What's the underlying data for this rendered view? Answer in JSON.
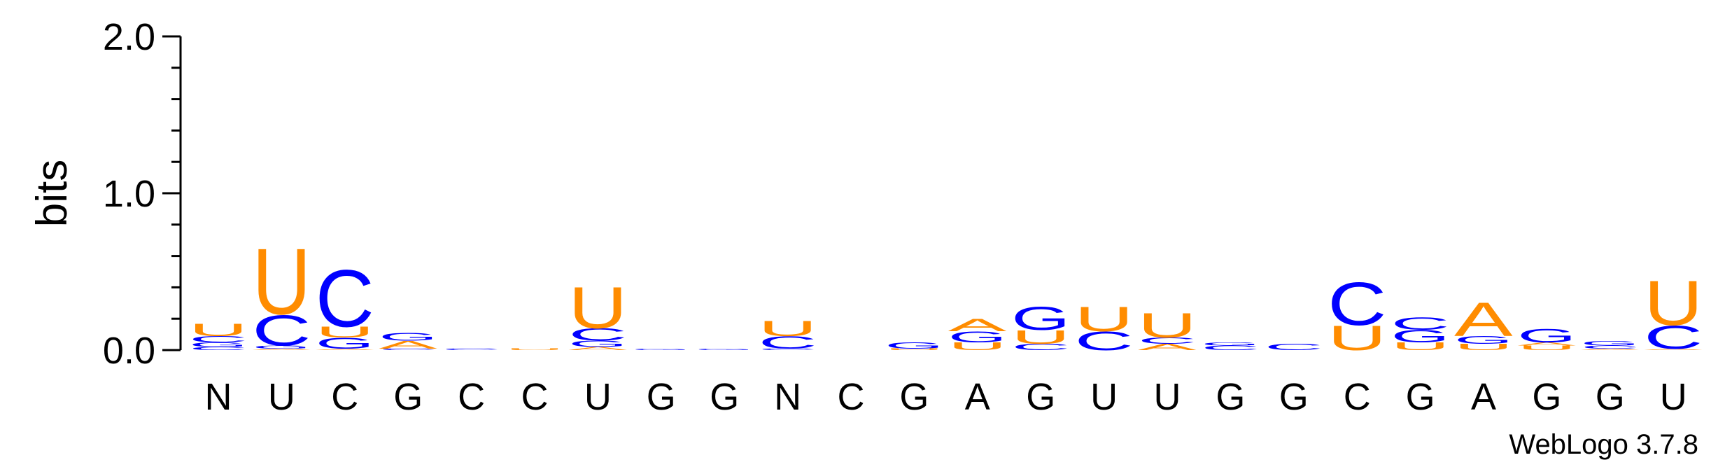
{
  "chart_data": {
    "type": "sequence-logo",
    "ylabel": "bits",
    "ylim": [
      0,
      2.0
    ],
    "yticks": [
      "0.0",
      "1.0",
      "2.0"
    ],
    "credit": "WebLogo 3.7.8",
    "colors": {
      "A": "#ff8c00",
      "U": "#ff8c00",
      "C": "#0000ff",
      "G": "#0000ff"
    },
    "positions": [
      {
        "label": "N",
        "stack": [
          {
            "letter": "C",
            "bits": 0.02
          },
          {
            "letter": "G",
            "bits": 0.03
          },
          {
            "letter": "C",
            "bits": 0.04
          },
          {
            "letter": "U",
            "bits": 0.08
          }
        ]
      },
      {
        "label": "U",
        "stack": [
          {
            "letter": "A",
            "bits": 0.01
          },
          {
            "letter": "G",
            "bits": 0.02
          },
          {
            "letter": "C",
            "bits": 0.2
          },
          {
            "letter": "U",
            "bits": 0.43
          }
        ]
      },
      {
        "label": "C",
        "stack": [
          {
            "letter": "A",
            "bits": 0.01
          },
          {
            "letter": "G",
            "bits": 0.07
          },
          {
            "letter": "U",
            "bits": 0.07
          },
          {
            "letter": "C",
            "bits": 0.37
          }
        ]
      },
      {
        "label": "G",
        "stack": [
          {
            "letter": "C",
            "bits": 0.01
          },
          {
            "letter": "A",
            "bits": 0.05
          },
          {
            "letter": "G",
            "bits": 0.05
          }
        ]
      },
      {
        "label": "C",
        "stack": [
          {
            "letter": "C",
            "bits": 0.01
          }
        ]
      },
      {
        "label": "C",
        "stack": [
          {
            "letter": "U",
            "bits": 0.01
          }
        ]
      },
      {
        "label": "U",
        "stack": [
          {
            "letter": "A",
            "bits": 0.02
          },
          {
            "letter": "G",
            "bits": 0.04
          },
          {
            "letter": "C",
            "bits": 0.08
          },
          {
            "letter": "U",
            "bits": 0.27
          }
        ]
      },
      {
        "label": "G",
        "stack": [
          {
            "letter": "G",
            "bits": 0.01
          }
        ]
      },
      {
        "label": "G",
        "stack": [
          {
            "letter": "G",
            "bits": 0.01
          }
        ]
      },
      {
        "label": "N",
        "stack": [
          {
            "letter": "C",
            "bits": 0.01
          },
          {
            "letter": "C",
            "bits": 0.08
          },
          {
            "letter": "U",
            "bits": 0.1
          }
        ]
      },
      {
        "label": "C",
        "stack": []
      },
      {
        "label": "G",
        "stack": [
          {
            "letter": "U",
            "bits": 0.01
          },
          {
            "letter": "G",
            "bits": 0.04
          }
        ]
      },
      {
        "label": "A",
        "stack": [
          {
            "letter": "U",
            "bits": 0.05
          },
          {
            "letter": "G",
            "bits": 0.07
          },
          {
            "letter": "A",
            "bits": 0.08
          }
        ]
      },
      {
        "label": "G",
        "stack": [
          {
            "letter": "C",
            "bits": 0.04
          },
          {
            "letter": "U",
            "bits": 0.09
          },
          {
            "letter": "G",
            "bits": 0.15
          }
        ]
      },
      {
        "label": "U",
        "stack": [
          {
            "letter": "C",
            "bits": 0.12
          },
          {
            "letter": "U",
            "bits": 0.16
          }
        ]
      },
      {
        "label": "U",
        "stack": [
          {
            "letter": "A",
            "bits": 0.04
          },
          {
            "letter": "C",
            "bits": 0.04
          },
          {
            "letter": "U",
            "bits": 0.16
          }
        ]
      },
      {
        "label": "G",
        "stack": [
          {
            "letter": "C",
            "bits": 0.03
          },
          {
            "letter": "G",
            "bits": 0.02
          }
        ]
      },
      {
        "label": "G",
        "stack": [
          {
            "letter": "C",
            "bits": 0.04
          }
        ]
      },
      {
        "label": "C",
        "stack": [
          {
            "letter": "U",
            "bits": 0.16
          },
          {
            "letter": "C",
            "bits": 0.28
          }
        ]
      },
      {
        "label": "G",
        "stack": [
          {
            "letter": "U",
            "bits": 0.05
          },
          {
            "letter": "G",
            "bits": 0.08
          },
          {
            "letter": "C",
            "bits": 0.08
          }
        ]
      },
      {
        "label": "A",
        "stack": [
          {
            "letter": "U",
            "bits": 0.04
          },
          {
            "letter": "G",
            "bits": 0.05
          },
          {
            "letter": "A",
            "bits": 0.22
          }
        ]
      },
      {
        "label": "G",
        "stack": [
          {
            "letter": "U",
            "bits": 0.03
          },
          {
            "letter": "A",
            "bits": 0.02
          },
          {
            "letter": "G",
            "bits": 0.09
          }
        ]
      },
      {
        "label": "G",
        "stack": [
          {
            "letter": "A",
            "bits": 0.01
          },
          {
            "letter": "C",
            "bits": 0.02
          },
          {
            "letter": "G",
            "bits": 0.03
          }
        ]
      },
      {
        "label": "U",
        "stack": [
          {
            "letter": "A",
            "bits": 0.01
          },
          {
            "letter": "C",
            "bits": 0.15
          },
          {
            "letter": "U",
            "bits": 0.29
          }
        ]
      }
    ]
  }
}
